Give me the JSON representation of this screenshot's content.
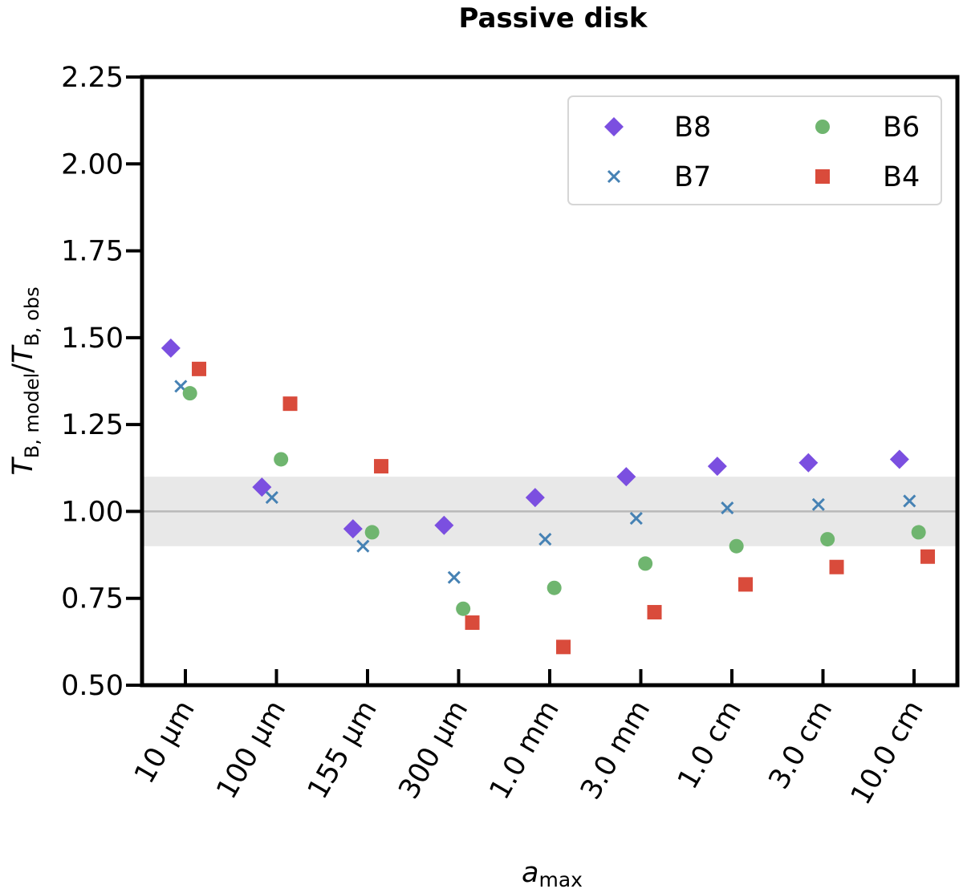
{
  "chart_data": {
    "type": "scatter",
    "title": "Passive disk",
    "xlabel_main": "a",
    "xlabel_sub": "max",
    "ylabel": {
      "t1": "T",
      "s1": "B, model",
      "slash": "/",
      "t2": "T",
      "s2": "B, obs"
    },
    "categories": [
      "10 μm",
      "100 μm",
      "155 μm",
      "300 μm",
      "1.0 mm",
      "3.0 mm",
      "1.0 cm",
      "3.0 cm",
      "10.0 cm"
    ],
    "ylim": [
      0.5,
      2.25
    ],
    "yticks": [
      "0.50",
      "0.75",
      "1.00",
      "1.25",
      "1.50",
      "1.75",
      "2.00",
      "2.25"
    ],
    "reference_line": 1.0,
    "reference_band": [
      0.9,
      1.1
    ],
    "legend_position": "top-right",
    "series": [
      {
        "name": "B8",
        "marker": "diamond",
        "color": "#7b4fe0",
        "offset": -0.16,
        "values": [
          1.47,
          1.07,
          0.95,
          0.96,
          1.04,
          1.1,
          1.13,
          1.14,
          1.15
        ]
      },
      {
        "name": "B7",
        "marker": "x",
        "color": "#4682b4",
        "offset": -0.05,
        "values": [
          1.36,
          1.04,
          0.9,
          0.81,
          0.92,
          0.98,
          1.01,
          1.02,
          1.03
        ]
      },
      {
        "name": "B6",
        "marker": "circle",
        "color": "#6fb56f",
        "offset": 0.05,
        "values": [
          1.34,
          1.15,
          0.94,
          0.72,
          0.78,
          0.85,
          0.9,
          0.92,
          0.94
        ]
      },
      {
        "name": "B4",
        "marker": "square",
        "color": "#d94b3b",
        "offset": 0.15,
        "values": [
          1.41,
          1.31,
          1.13,
          0.68,
          0.61,
          0.71,
          0.79,
          0.84,
          0.87
        ]
      }
    ]
  }
}
